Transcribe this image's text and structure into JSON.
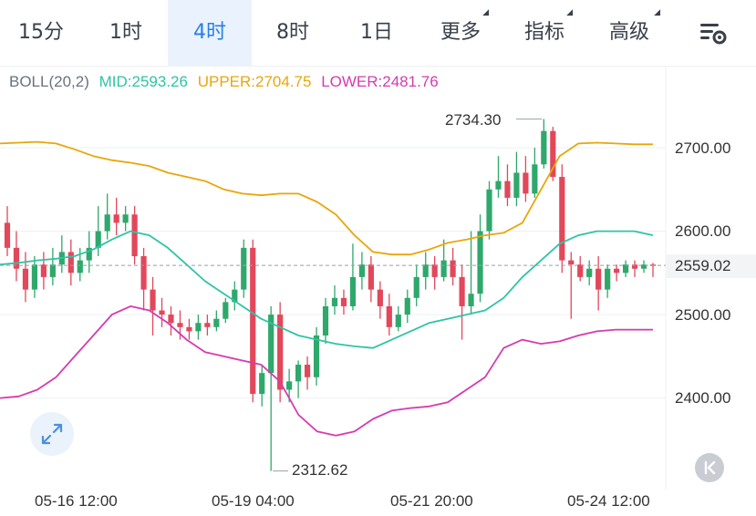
{
  "tabs": [
    {
      "label": "15分",
      "active": false
    },
    {
      "label": "1时",
      "active": false
    },
    {
      "label": "4时",
      "active": true
    },
    {
      "label": "8时",
      "active": false
    },
    {
      "label": "1日",
      "active": false
    },
    {
      "label": "更多",
      "active": false,
      "dropdown": true
    },
    {
      "label": "指标",
      "active": false,
      "dropdown": true
    },
    {
      "label": "高级",
      "active": false,
      "dropdown": true
    }
  ],
  "settings_icon": "chart-settings-icon",
  "indicator": {
    "name": "BOLL(20,2)",
    "mid": "MID:2593.26",
    "upper": "UPPER:2704.75",
    "lower": "LOWER:2481.76"
  },
  "colors": {
    "up": "#2ea86b",
    "down": "#e2475a",
    "mid": "#2ec4a6",
    "upper": "#e9a60a",
    "lower": "#d63ab0",
    "active_tab": "#2a7ee6"
  },
  "chart_data": {
    "type": "candlestick",
    "y_axis_labels": [
      "2700.00",
      "2600.00",
      "2500.00",
      "2400.00"
    ],
    "y_ticks": [
      2700,
      2600,
      2500,
      2400
    ],
    "ylim": [
      2300,
      2760
    ],
    "x_axis_labels": [
      "05-16 12:00",
      "05-19 04:00",
      "05-21 20:00",
      "05-24 12:00"
    ],
    "last_price": "2559.02",
    "high_marker": "2734.30",
    "low_marker": "2312.62",
    "candles": [
      [
        2610,
        2580,
        2630,
        2570
      ],
      [
        2580,
        2555,
        2600,
        2540
      ],
      [
        2555,
        2530,
        2575,
        2515
      ],
      [
        2530,
        2560,
        2570,
        2520
      ],
      [
        2560,
        2545,
        2575,
        2530
      ],
      [
        2545,
        2560,
        2580,
        2535
      ],
      [
        2560,
        2575,
        2595,
        2550
      ],
      [
        2575,
        2550,
        2590,
        2535
      ],
      [
        2550,
        2565,
        2580,
        2540
      ],
      [
        2565,
        2580,
        2600,
        2550
      ],
      [
        2580,
        2600,
        2630,
        2570
      ],
      [
        2600,
        2620,
        2645,
        2590
      ],
      [
        2620,
        2610,
        2640,
        2595
      ],
      [
        2610,
        2620,
        2630,
        2600
      ],
      [
        2620,
        2570,
        2630,
        2560
      ],
      [
        2570,
        2530,
        2580,
        2505
      ],
      [
        2530,
        2505,
        2545,
        2475
      ],
      [
        2505,
        2500,
        2520,
        2485
      ],
      [
        2500,
        2490,
        2510,
        2475
      ],
      [
        2490,
        2485,
        2505,
        2470
      ],
      [
        2485,
        2480,
        2495,
        2470
      ],
      [
        2480,
        2490,
        2500,
        2470
      ],
      [
        2490,
        2485,
        2500,
        2475
      ],
      [
        2485,
        2495,
        2505,
        2480
      ],
      [
        2495,
        2515,
        2520,
        2490
      ],
      [
        2515,
        2530,
        2540,
        2505
      ],
      [
        2530,
        2580,
        2590,
        2520
      ],
      [
        2580,
        2405,
        2590,
        2395
      ],
      [
        2405,
        2430,
        2440,
        2390
      ],
      [
        2430,
        2500,
        2510,
        2312.62
      ],
      [
        2500,
        2410,
        2515,
        2395
      ],
      [
        2410,
        2420,
        2435,
        2395
      ],
      [
        2420,
        2440,
        2445,
        2400
      ],
      [
        2440,
        2425,
        2450,
        2410
      ],
      [
        2425,
        2475,
        2485,
        2415
      ],
      [
        2475,
        2510,
        2520,
        2465
      ],
      [
        2510,
        2520,
        2535,
        2500
      ],
      [
        2520,
        2510,
        2530,
        2500
      ],
      [
        2510,
        2545,
        2585,
        2505
      ],
      [
        2545,
        2560,
        2575,
        2530
      ],
      [
        2560,
        2530,
        2570,
        2515
      ],
      [
        2530,
        2510,
        2540,
        2495
      ],
      [
        2510,
        2485,
        2525,
        2475
      ],
      [
        2485,
        2500,
        2510,
        2480
      ],
      [
        2500,
        2520,
        2530,
        2490
      ],
      [
        2520,
        2545,
        2560,
        2510
      ],
      [
        2545,
        2560,
        2575,
        2530
      ],
      [
        2560,
        2545,
        2570,
        2530
      ],
      [
        2545,
        2565,
        2590,
        2540
      ],
      [
        2565,
        2545,
        2580,
        2535
      ],
      [
        2545,
        2510,
        2560,
        2470
      ],
      [
        2510,
        2525,
        2600,
        2500
      ],
      [
        2525,
        2600,
        2620,
        2515
      ],
      [
        2600,
        2650,
        2660,
        2590
      ],
      [
        2650,
        2660,
        2690,
        2640
      ],
      [
        2660,
        2640,
        2680,
        2630
      ],
      [
        2640,
        2670,
        2695,
        2630
      ],
      [
        2670,
        2645,
        2690,
        2635
      ],
      [
        2645,
        2680,
        2700,
        2640
      ],
      [
        2680,
        2720,
        2734.3,
        2675
      ],
      [
        2720,
        2665,
        2725,
        2660
      ],
      [
        2665,
        2565,
        2680,
        2550
      ],
      [
        2565,
        2560,
        2575,
        2495
      ],
      [
        2560,
        2545,
        2570,
        2540
      ],
      [
        2545,
        2555,
        2565,
        2535
      ],
      [
        2555,
        2530,
        2570,
        2505
      ],
      [
        2530,
        2555,
        2560,
        2520
      ],
      [
        2555,
        2550,
        2560,
        2540
      ],
      [
        2550,
        2560,
        2565,
        2545
      ],
      [
        2560,
        2555,
        2565,
        2545
      ],
      [
        2555,
        2560,
        2565,
        2550
      ],
      [
        2560,
        2559.02,
        2562,
        2545
      ]
    ],
    "mid_band": [
      2560,
      2562,
      2565,
      2567,
      2570,
      2578,
      2590,
      2600,
      2595,
      2580,
      2560,
      2540,
      2525,
      2510,
      2495,
      2485,
      2475,
      2470,
      2465,
      2462,
      2460,
      2470,
      2480,
      2490,
      2495,
      2500,
      2505,
      2520,
      2545,
      2565,
      2585,
      2595,
      2600,
      2600,
      2600,
      2595
    ],
    "upper_band": [
      2705,
      2706,
      2707,
      2705,
      2698,
      2690,
      2685,
      2682,
      2678,
      2670,
      2665,
      2660,
      2650,
      2645,
      2643,
      2645,
      2645,
      2635,
      2620,
      2595,
      2575,
      2572,
      2572,
      2578,
      2586,
      2590,
      2595,
      2598,
      2610,
      2650,
      2690,
      2705,
      2706,
      2705,
      2704,
      2704
    ],
    "lower_band": [
      2400,
      2402,
      2410,
      2425,
      2450,
      2475,
      2500,
      2510,
      2505,
      2490,
      2470,
      2455,
      2450,
      2445,
      2440,
      2420,
      2380,
      2360,
      2355,
      2360,
      2375,
      2385,
      2388,
      2390,
      2395,
      2410,
      2425,
      2460,
      2470,
      2465,
      2468,
      2475,
      2480,
      2482,
      2482,
      2482
    ]
  }
}
